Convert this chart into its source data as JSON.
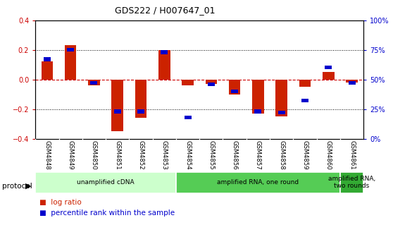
{
  "title": "GDS222 / H007647_01",
  "samples": [
    "GSM4848",
    "GSM4849",
    "GSM4850",
    "GSM4851",
    "GSM4852",
    "GSM4853",
    "GSM4854",
    "GSM4855",
    "GSM4856",
    "GSM4857",
    "GSM4858",
    "GSM4859",
    "GSM4860",
    "GSM4861"
  ],
  "log_ratio": [
    0.12,
    0.23,
    -0.04,
    -0.35,
    -0.26,
    0.2,
    -0.04,
    -0.03,
    -0.1,
    -0.23,
    -0.25,
    -0.05,
    0.05,
    -0.02
  ],
  "percentile_rank": [
    67,
    75,
    47,
    23,
    23,
    73,
    18,
    46,
    40,
    23,
    22,
    32,
    60,
    47
  ],
  "protocol_groups": [
    {
      "label": "unamplified cDNA",
      "start": 0,
      "end": 6,
      "color": "#ccffcc"
    },
    {
      "label": "amplified RNA, one round",
      "start": 6,
      "end": 13,
      "color": "#55cc55"
    },
    {
      "label": "amplified RNA,\ntwo rounds",
      "start": 13,
      "end": 14,
      "color": "#33aa33"
    }
  ],
  "ylim": [
    -0.4,
    0.4
  ],
  "yticks_left": [
    -0.4,
    -0.2,
    0.0,
    0.2,
    0.4
  ],
  "bar_color": "#cc2200",
  "dot_color": "#0000cc",
  "zero_line_color": "#cc0000",
  "bg_color": "#ffffff",
  "tick_label_bg": "#cccccc",
  "legend_items": [
    "log ratio",
    "percentile rank within the sample"
  ]
}
